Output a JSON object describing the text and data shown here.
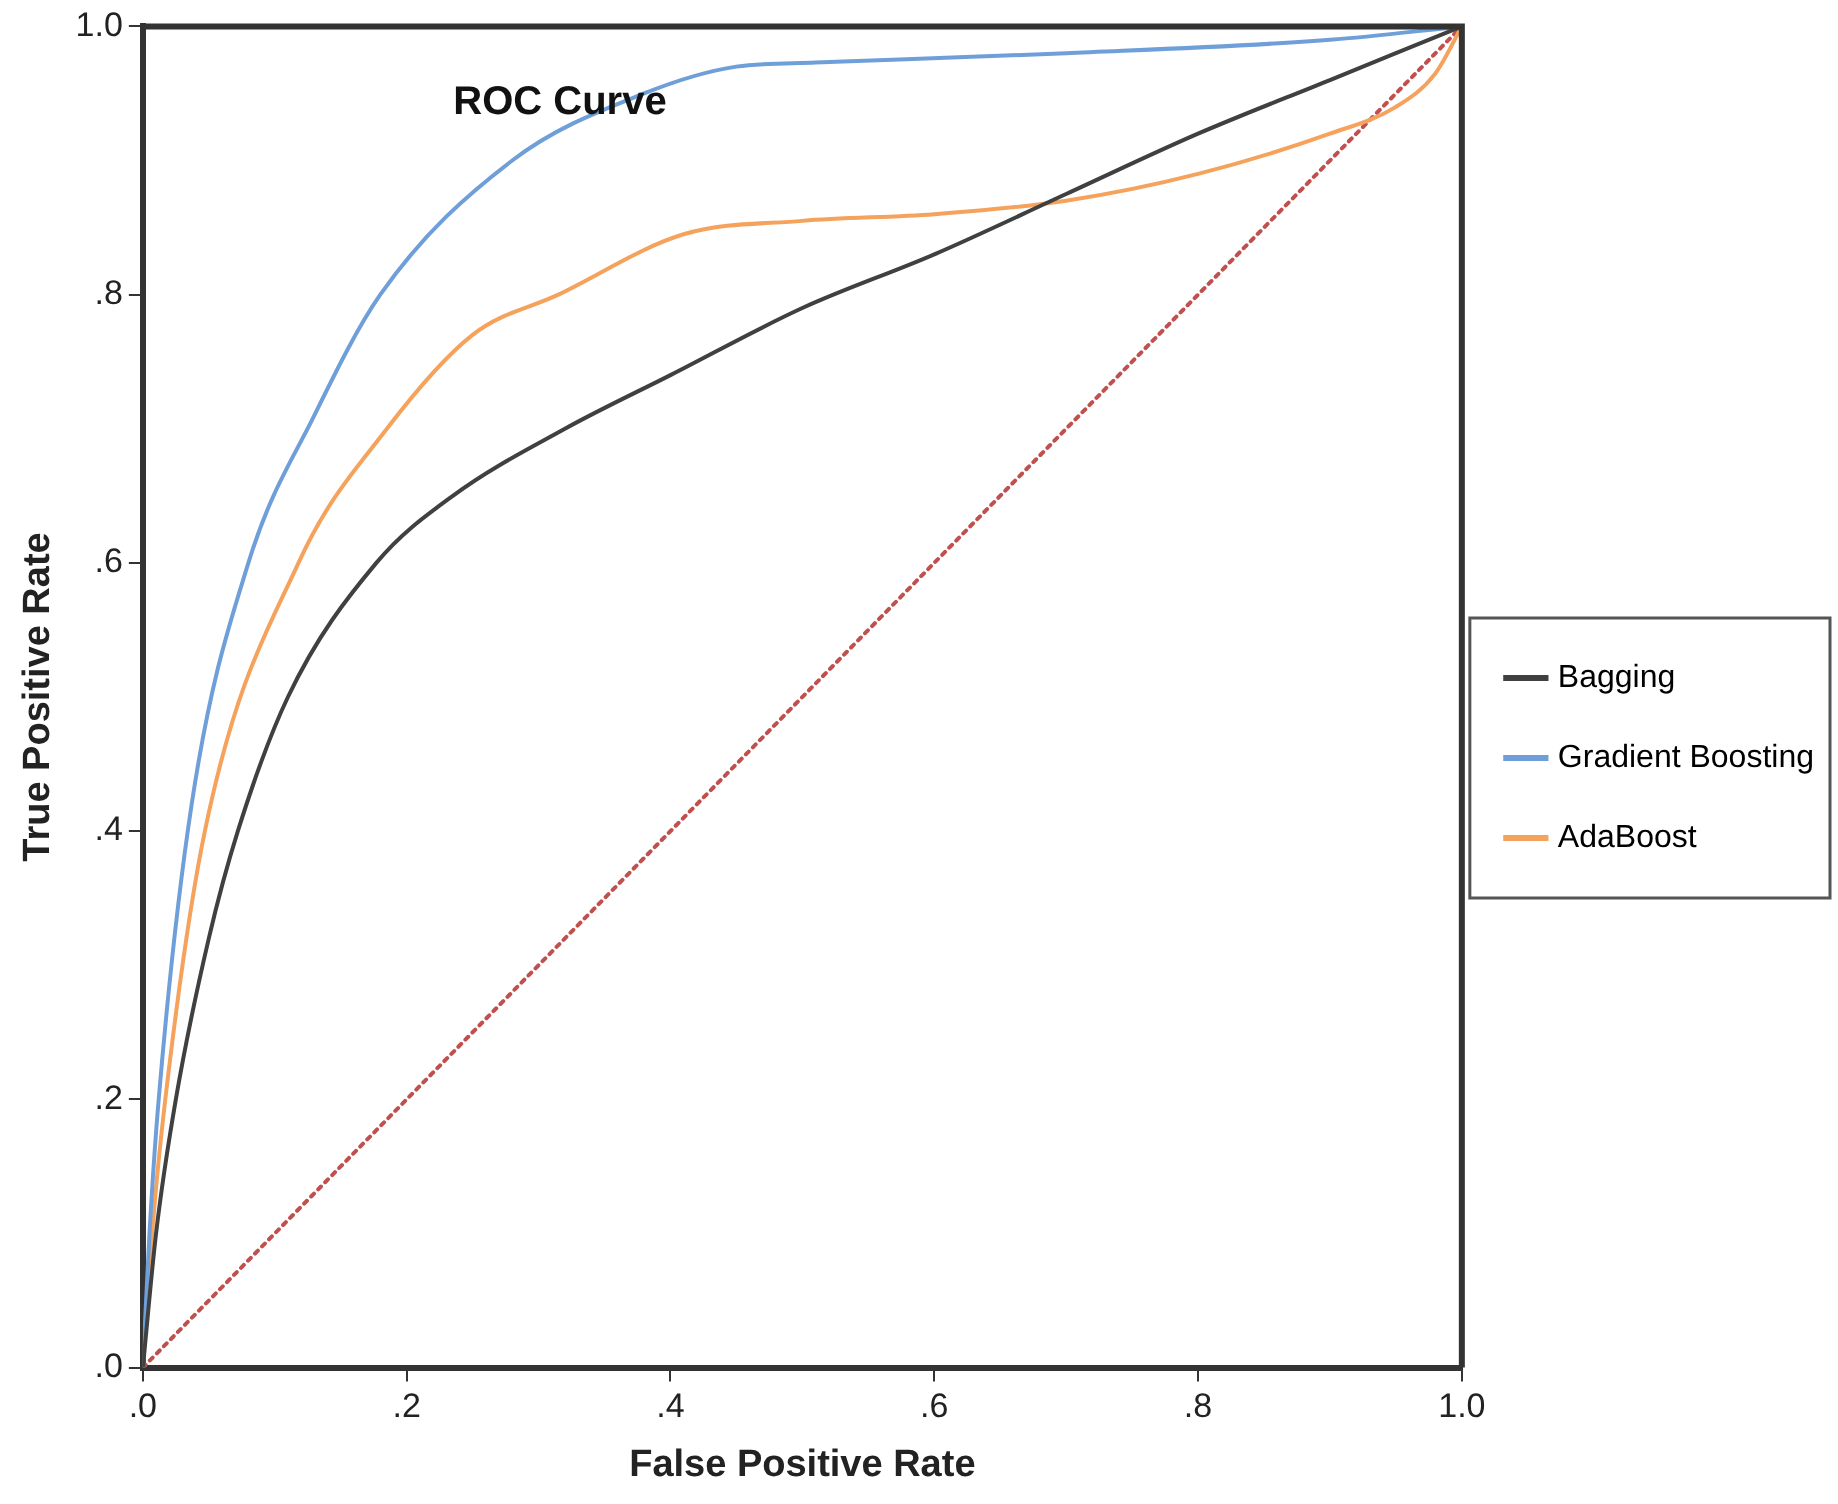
{
  "chart_data": {
    "type": "line",
    "title": "ROC Curve",
    "xlabel": "False Positive Rate",
    "ylabel": "True Positive Rate",
    "xlim": [
      0,
      1
    ],
    "ylim": [
      0,
      1
    ],
    "xticks": [
      {
        "value": 0,
        "label": ".0"
      },
      {
        "value": 0.2,
        "label": ".2"
      },
      {
        "value": 0.4,
        "label": ".4"
      },
      {
        "value": 0.6,
        "label": ".6"
      },
      {
        "value": 0.8,
        "label": ".8"
      },
      {
        "value": 1,
        "label": "1.0"
      }
    ],
    "yticks": [
      {
        "value": 0,
        "label": ".0"
      },
      {
        "value": 0.2,
        "label": ".2"
      },
      {
        "value": 0.4,
        "label": ".4"
      },
      {
        "value": 0.6,
        "label": ".6"
      },
      {
        "value": 0.8,
        "label": ".8"
      },
      {
        "value": 1,
        "label": "1.0"
      }
    ],
    "grid": false,
    "legend": "right",
    "marker": "none",
    "series": [
      {
        "name": "Bagging",
        "color": "#404040",
        "x": [
          0,
          0.01,
          0.025,
          0.05,
          0.072,
          0.11,
          0.177,
          0.235,
          0.32,
          0.4,
          0.5,
          0.6,
          0.7,
          0.8,
          0.9,
          1
        ],
        "values": [
          0,
          0.1,
          0.2,
          0.32,
          0.4,
          0.5,
          0.6,
          0.65,
          0.7,
          0.74,
          0.79,
          0.83,
          0.875,
          0.92,
          0.96,
          1
        ]
      },
      {
        "name": "Gradient Boosting",
        "color": "#6f9fd8",
        "x": [
          0,
          0.005,
          0.012,
          0.037,
          0.08,
          0.13,
          0.18,
          0.28,
          0.38,
          0.45,
          0.51,
          0.7,
          0.9,
          1
        ],
        "values": [
          0,
          0.1,
          0.2,
          0.42,
          0.6,
          0.71,
          0.8,
          0.9,
          0.95,
          0.97,
          0.973,
          0.98,
          0.99,
          1
        ]
      },
      {
        "name": "AdaBoost",
        "color": "#f5a25d",
        "x": [
          0,
          0.007,
          0.017,
          0.047,
          0.118,
          0.185,
          0.25,
          0.315,
          0.41,
          0.5,
          0.6,
          0.7,
          0.8,
          0.9,
          0.95,
          0.98,
          1
        ],
        "values": [
          0,
          0.1,
          0.2,
          0.4,
          0.6,
          0.7,
          0.77,
          0.8,
          0.845,
          0.855,
          0.86,
          0.87,
          0.89,
          0.92,
          0.94,
          0.965,
          1
        ]
      },
      {
        "color": "#c0504d",
        "line_style": "dotted",
        "x": [
          0,
          1
        ],
        "values": [
          0,
          1
        ]
      }
    ]
  }
}
